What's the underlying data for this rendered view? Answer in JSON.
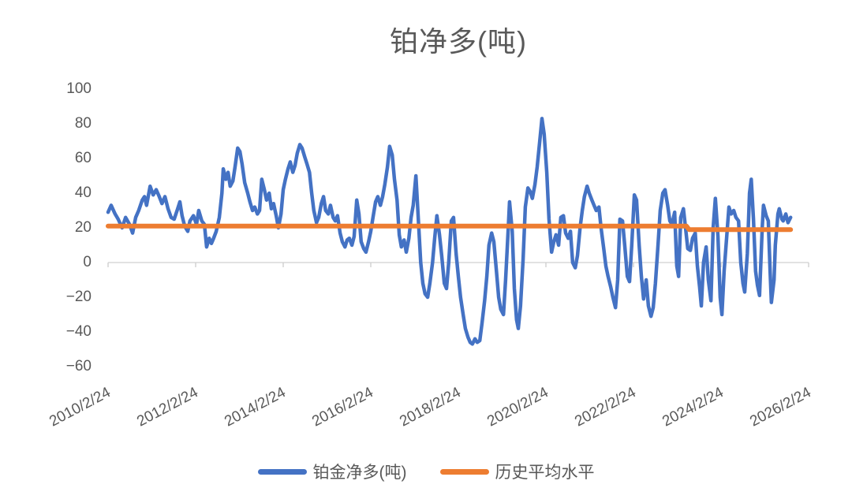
{
  "title": "铂净多(吨)",
  "colors": {
    "series_blue": "#4472C4",
    "series_orange": "#ED7D31",
    "text_gray": "#595959",
    "axis_line_gray": "#D9D9D9",
    "tick_gray": "#CFCFCF",
    "background": "#FFFFFF"
  },
  "y_axis": {
    "tick_labels": [
      "100",
      "80",
      "60",
      "40",
      "20",
      "0",
      "−20",
      "−40",
      "−60"
    ],
    "tick_values": [
      100,
      80,
      60,
      40,
      20,
      0,
      -20,
      -40,
      -60
    ]
  },
  "x_axis": {
    "tick_labels": [
      "2010/2/24",
      "2012/2/24",
      "2014/2/24",
      "2016/2/24",
      "2018/2/24",
      "2020/2/24",
      "2022/2/24",
      "2024/2/24",
      "2026/2/24"
    ],
    "tick_years": [
      2010.15,
      2012.15,
      2014.15,
      2016.15,
      2018.15,
      2020.15,
      2022.15,
      2024.15,
      2026.15
    ]
  },
  "legend": {
    "items": [
      {
        "label": "铂金净多(吨)",
        "color": "#4472C4"
      },
      {
        "label": "历史平均水平",
        "color": "#ED7D31"
      }
    ]
  },
  "chart_data": {
    "type": "line",
    "title": "铂净多(吨)",
    "xlabel": "",
    "ylabel": "",
    "ylim": [
      -60,
      100
    ],
    "xlim_years": [
      2010.15,
      2026.15
    ],
    "grid": "zero-axis-line-only",
    "legend_position": "bottom",
    "series": [
      {
        "name": "铂金净多(吨)",
        "color": "#4472C4",
        "points": [
          [
            2010.15,
            29
          ],
          [
            2010.22,
            33
          ],
          [
            2010.31,
            28
          ],
          [
            2010.38,
            25
          ],
          [
            2010.47,
            20
          ],
          [
            2010.55,
            26
          ],
          [
            2010.64,
            22
          ],
          [
            2010.71,
            17
          ],
          [
            2010.78,
            26
          ],
          [
            2010.85,
            30
          ],
          [
            2010.93,
            36
          ],
          [
            2010.98,
            38
          ],
          [
            2011.03,
            33
          ],
          [
            2011.11,
            44
          ],
          [
            2011.18,
            39
          ],
          [
            2011.25,
            42
          ],
          [
            2011.32,
            38
          ],
          [
            2011.38,
            34
          ],
          [
            2011.45,
            38
          ],
          [
            2011.52,
            31
          ],
          [
            2011.59,
            26
          ],
          [
            2011.66,
            25
          ],
          [
            2011.74,
            31
          ],
          [
            2011.79,
            35
          ],
          [
            2011.84,
            27
          ],
          [
            2011.9,
            21
          ],
          [
            2011.97,
            18
          ],
          [
            2012.02,
            24
          ],
          [
            2012.1,
            27
          ],
          [
            2012.17,
            22
          ],
          [
            2012.22,
            30
          ],
          [
            2012.29,
            24
          ],
          [
            2012.35,
            22
          ],
          [
            2012.4,
            9
          ],
          [
            2012.46,
            14
          ],
          [
            2012.51,
            11
          ],
          [
            2012.56,
            14
          ],
          [
            2012.62,
            18
          ],
          [
            2012.69,
            26
          ],
          [
            2012.75,
            40
          ],
          [
            2012.78,
            54
          ],
          [
            2012.84,
            48
          ],
          [
            2012.89,
            52
          ],
          [
            2012.94,
            44
          ],
          [
            2013.0,
            47
          ],
          [
            2013.05,
            55
          ],
          [
            2013.11,
            66
          ],
          [
            2013.16,
            64
          ],
          [
            2013.21,
            57
          ],
          [
            2013.27,
            46
          ],
          [
            2013.34,
            40
          ],
          [
            2013.39,
            35
          ],
          [
            2013.45,
            30
          ],
          [
            2013.5,
            32
          ],
          [
            2013.56,
            28
          ],
          [
            2013.61,
            30
          ],
          [
            2013.66,
            48
          ],
          [
            2013.72,
            42
          ],
          [
            2013.77,
            36
          ],
          [
            2013.83,
            40
          ],
          [
            2013.88,
            31
          ],
          [
            2013.93,
            34
          ],
          [
            2013.99,
            27
          ],
          [
            2014.04,
            20
          ],
          [
            2014.1,
            28
          ],
          [
            2014.15,
            42
          ],
          [
            2014.2,
            48
          ],
          [
            2014.26,
            54
          ],
          [
            2014.31,
            58
          ],
          [
            2014.37,
            52
          ],
          [
            2014.42,
            56
          ],
          [
            2014.47,
            63
          ],
          [
            2014.53,
            68
          ],
          [
            2014.58,
            66
          ],
          [
            2014.64,
            61
          ],
          [
            2014.69,
            57
          ],
          [
            2014.75,
            52
          ],
          [
            2014.8,
            40
          ],
          [
            2014.85,
            30
          ],
          [
            2014.91,
            23
          ],
          [
            2014.96,
            26
          ],
          [
            2015.02,
            34
          ],
          [
            2015.07,
            38
          ],
          [
            2015.12,
            30
          ],
          [
            2015.18,
            28
          ],
          [
            2015.23,
            33
          ],
          [
            2015.29,
            26
          ],
          [
            2015.34,
            24
          ],
          [
            2015.39,
            27
          ],
          [
            2015.45,
            17
          ],
          [
            2015.5,
            12
          ],
          [
            2015.56,
            9
          ],
          [
            2015.61,
            13
          ],
          [
            2015.66,
            14
          ],
          [
            2015.72,
            10
          ],
          [
            2015.77,
            15
          ],
          [
            2015.83,
            36
          ],
          [
            2015.88,
            28
          ],
          [
            2015.93,
            12
          ],
          [
            2015.99,
            8
          ],
          [
            2016.04,
            6
          ],
          [
            2016.1,
            12
          ],
          [
            2016.15,
            18
          ],
          [
            2016.2,
            26
          ],
          [
            2016.26,
            35
          ],
          [
            2016.31,
            38
          ],
          [
            2016.37,
            33
          ],
          [
            2016.42,
            38
          ],
          [
            2016.47,
            45
          ],
          [
            2016.53,
            55
          ],
          [
            2016.58,
            67
          ],
          [
            2016.64,
            62
          ],
          [
            2016.69,
            48
          ],
          [
            2016.75,
            36
          ],
          [
            2016.8,
            16
          ],
          [
            2016.85,
            9
          ],
          [
            2016.91,
            13
          ],
          [
            2016.96,
            6
          ],
          [
            2017.02,
            14
          ],
          [
            2017.07,
            26
          ],
          [
            2017.12,
            33
          ],
          [
            2017.18,
            50
          ],
          [
            2017.23,
            28
          ],
          [
            2017.29,
            0
          ],
          [
            2017.34,
            -12
          ],
          [
            2017.39,
            -18
          ],
          [
            2017.45,
            -20
          ],
          [
            2017.5,
            -12
          ],
          [
            2017.56,
            0
          ],
          [
            2017.61,
            14
          ],
          [
            2017.66,
            27
          ],
          [
            2017.72,
            16
          ],
          [
            2017.77,
            4
          ],
          [
            2017.83,
            -12
          ],
          [
            2017.88,
            -15
          ],
          [
            2017.93,
            0
          ],
          [
            2017.99,
            24
          ],
          [
            2018.04,
            26
          ],
          [
            2018.1,
            5
          ],
          [
            2018.15,
            -8
          ],
          [
            2018.2,
            -20
          ],
          [
            2018.26,
            -30
          ],
          [
            2018.31,
            -38
          ],
          [
            2018.37,
            -43
          ],
          [
            2018.42,
            -46
          ],
          [
            2018.47,
            -47
          ],
          [
            2018.53,
            -44
          ],
          [
            2018.58,
            -46
          ],
          [
            2018.64,
            -45
          ],
          [
            2018.69,
            -35
          ],
          [
            2018.75,
            -22
          ],
          [
            2018.8,
            -8
          ],
          [
            2018.85,
            10
          ],
          [
            2018.91,
            17
          ],
          [
            2018.96,
            12
          ],
          [
            2019.02,
            -5
          ],
          [
            2019.07,
            -20
          ],
          [
            2019.12,
            -27
          ],
          [
            2019.18,
            -30
          ],
          [
            2019.23,
            -10
          ],
          [
            2019.29,
            20
          ],
          [
            2019.32,
            35
          ],
          [
            2019.38,
            18
          ],
          [
            2019.43,
            -15
          ],
          [
            2019.48,
            -33
          ],
          [
            2019.52,
            -38
          ],
          [
            2019.57,
            -25
          ],
          [
            2019.63,
            2
          ],
          [
            2019.68,
            32
          ],
          [
            2019.74,
            43
          ],
          [
            2019.79,
            41
          ],
          [
            2019.84,
            37
          ],
          [
            2019.9,
            45
          ],
          [
            2019.95,
            55
          ],
          [
            2020.01,
            70
          ],
          [
            2020.06,
            83
          ],
          [
            2020.11,
            74
          ],
          [
            2020.17,
            52
          ],
          [
            2020.22,
            25
          ],
          [
            2020.28,
            6
          ],
          [
            2020.33,
            12
          ],
          [
            2020.38,
            16
          ],
          [
            2020.44,
            10
          ],
          [
            2020.49,
            26
          ],
          [
            2020.55,
            27
          ],
          [
            2020.6,
            17
          ],
          [
            2020.66,
            14
          ],
          [
            2020.71,
            18
          ],
          [
            2020.76,
            0
          ],
          [
            2020.82,
            -3
          ],
          [
            2020.87,
            4
          ],
          [
            2020.93,
            20
          ],
          [
            2020.98,
            30
          ],
          [
            2021.03,
            38
          ],
          [
            2021.09,
            44
          ],
          [
            2021.14,
            40
          ],
          [
            2021.2,
            36
          ],
          [
            2021.25,
            33
          ],
          [
            2021.3,
            30
          ],
          [
            2021.36,
            32
          ],
          [
            2021.41,
            20
          ],
          [
            2021.47,
            8
          ],
          [
            2021.52,
            -2
          ],
          [
            2021.57,
            -8
          ],
          [
            2021.63,
            -14
          ],
          [
            2021.68,
            -20
          ],
          [
            2021.74,
            -26
          ],
          [
            2021.79,
            -10
          ],
          [
            2021.84,
            25
          ],
          [
            2021.9,
            24
          ],
          [
            2021.95,
            10
          ],
          [
            2022.01,
            -8
          ],
          [
            2022.06,
            -11
          ],
          [
            2022.11,
            10
          ],
          [
            2022.17,
            39
          ],
          [
            2022.22,
            36
          ],
          [
            2022.28,
            10
          ],
          [
            2022.33,
            -8
          ],
          [
            2022.38,
            -21
          ],
          [
            2022.44,
            -10
          ],
          [
            2022.49,
            -25
          ],
          [
            2022.55,
            -31
          ],
          [
            2022.6,
            -26
          ],
          [
            2022.65,
            -12
          ],
          [
            2022.71,
            10
          ],
          [
            2022.76,
            30
          ],
          [
            2022.82,
            40
          ],
          [
            2022.87,
            42
          ],
          [
            2022.93,
            33
          ],
          [
            2022.98,
            24
          ],
          [
            2023.03,
            22
          ],
          [
            2023.09,
            29
          ],
          [
            2023.14,
            -2
          ],
          [
            2023.18,
            -8
          ],
          [
            2023.23,
            26
          ],
          [
            2023.29,
            31
          ],
          [
            2023.34,
            20
          ],
          [
            2023.39,
            8
          ],
          [
            2023.45,
            7
          ],
          [
            2023.5,
            14
          ],
          [
            2023.56,
            17
          ],
          [
            2023.61,
            -2
          ],
          [
            2023.66,
            -14
          ],
          [
            2023.7,
            -25
          ],
          [
            2023.75,
            0
          ],
          [
            2023.81,
            9
          ],
          [
            2023.86,
            -10
          ],
          [
            2023.92,
            -22
          ],
          [
            2023.97,
            20
          ],
          [
            2024.02,
            37
          ],
          [
            2024.08,
            15
          ],
          [
            2024.13,
            -20
          ],
          [
            2024.17,
            -30
          ],
          [
            2024.22,
            -5
          ],
          [
            2024.28,
            15
          ],
          [
            2024.33,
            32
          ],
          [
            2024.38,
            28
          ],
          [
            2024.44,
            30
          ],
          [
            2024.49,
            26
          ],
          [
            2024.55,
            24
          ],
          [
            2024.6,
            0
          ],
          [
            2024.65,
            -12
          ],
          [
            2024.69,
            -17
          ],
          [
            2024.75,
            5
          ],
          [
            2024.8,
            40
          ],
          [
            2024.84,
            48
          ],
          [
            2024.89,
            25
          ],
          [
            2024.94,
            -5
          ],
          [
            2024.98,
            -13
          ],
          [
            2025.03,
            -19
          ],
          [
            2025.09,
            20
          ],
          [
            2025.12,
            33
          ],
          [
            2025.18,
            27
          ],
          [
            2025.23,
            24
          ],
          [
            2025.27,
            -5
          ],
          [
            2025.3,
            -23
          ],
          [
            2025.36,
            -10
          ],
          [
            2025.39,
            10
          ],
          [
            2025.45,
            28
          ],
          [
            2025.48,
            31
          ],
          [
            2025.54,
            25
          ],
          [
            2025.57,
            24
          ],
          [
            2025.63,
            28
          ],
          [
            2025.68,
            23
          ],
          [
            2025.74,
            26
          ]
        ]
      },
      {
        "name": "历史平均水平",
        "color": "#ED7D31",
        "points": [
          [
            2010.15,
            21
          ],
          [
            2023.36,
            21
          ],
          [
            2023.42,
            19
          ],
          [
            2025.74,
            19
          ]
        ]
      }
    ]
  }
}
